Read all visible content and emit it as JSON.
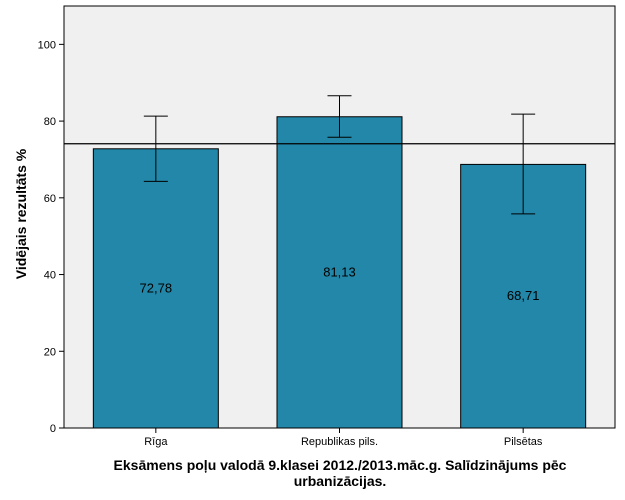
{
  "chart_data": {
    "type": "bar",
    "categories": [
      "Rīga",
      "Republikas pils.",
      "Pilsētas"
    ],
    "values": [
      72.78,
      81.13,
      68.71
    ],
    "value_labels": [
      "72,78",
      "81,13",
      "68,71"
    ],
    "error_bars": [
      {
        "low": 64.3,
        "high": 81.3
      },
      {
        "low": 75.8,
        "high": 86.6
      },
      {
        "low": 55.8,
        "high": 81.8
      }
    ],
    "reference_line": 74.1,
    "xlabel": "Eksāmens poļu valodā 9.klasei 2012./2013.māc.g. Salīdzinājums pēc urbanizācijas.",
    "ylabel": "Vidējais rezultāts %",
    "ylim": [
      0,
      110
    ],
    "yticks": [
      0,
      20,
      40,
      60,
      80,
      100
    ],
    "grid": false,
    "colors": {
      "bar": "#2287a8",
      "plot_background": "#f0f0f0",
      "stroke": "#000000"
    }
  }
}
